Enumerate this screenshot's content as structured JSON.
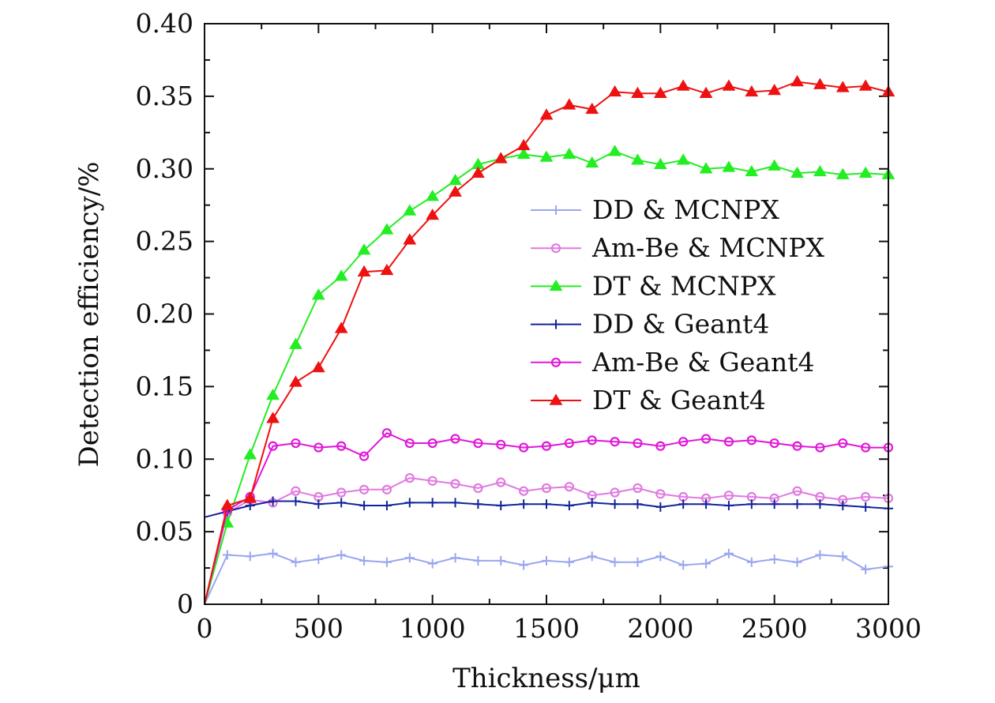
{
  "chart_data": {
    "type": "line",
    "title": "",
    "xlabel": "Thickness/μm",
    "ylabel": "Detection efficiency/%",
    "xlim": [
      0,
      3000
    ],
    "ylim": [
      0,
      0.4
    ],
    "x_ticks": [
      "0",
      "500",
      "1000",
      "1500",
      "2000",
      "2500",
      "3000"
    ],
    "x_tick_values": [
      0,
      500,
      1000,
      1500,
      2000,
      2500,
      3000
    ],
    "y_ticks": [
      "0",
      "0.05",
      "0.10",
      "0.15",
      "0.20",
      "0.25",
      "0.30",
      "0.35",
      "0.40"
    ],
    "y_tick_values": [
      0,
      0.05,
      0.1,
      0.15,
      0.2,
      0.25,
      0.3,
      0.35,
      0.4
    ],
    "grid": false,
    "legend_position": "right-center",
    "x": [
      0,
      100,
      200,
      300,
      400,
      500,
      600,
      700,
      800,
      900,
      1000,
      1100,
      1200,
      1300,
      1400,
      1500,
      1600,
      1700,
      1800,
      1900,
      2000,
      2100,
      2200,
      2300,
      2400,
      2500,
      2600,
      2700,
      2800,
      2900,
      3000
    ],
    "series": [
      {
        "name": "DD & MCNPX",
        "color": "#9aa6ee",
        "marker": "plus",
        "values": [
          0,
          0.034,
          0.033,
          0.035,
          0.029,
          0.031,
          0.034,
          0.03,
          0.029,
          0.032,
          0.028,
          0.032,
          0.03,
          0.03,
          0.027,
          0.03,
          0.029,
          0.033,
          0.029,
          0.029,
          0.033,
          0.027,
          0.028,
          0.035,
          0.029,
          0.031,
          0.029,
          0.034,
          0.033,
          0.024,
          0.026
        ]
      },
      {
        "name": "Am-Be & MCNPX",
        "color": "#e07ae0",
        "marker": "circle",
        "values": [
          0,
          0.063,
          0.072,
          0.07,
          0.078,
          0.074,
          0.077,
          0.079,
          0.079,
          0.087,
          0.085,
          0.083,
          0.08,
          0.084,
          0.078,
          0.08,
          0.081,
          0.075,
          0.077,
          0.08,
          0.076,
          0.074,
          0.073,
          0.075,
          0.074,
          0.073,
          0.078,
          0.074,
          0.072,
          0.074,
          0.073
        ]
      },
      {
        "name": "DT & MCNPX",
        "color": "#22ee22",
        "marker": "triangle",
        "values": [
          0,
          0.056,
          0.103,
          0.144,
          0.179,
          0.213,
          0.226,
          0.244,
          0.258,
          0.271,
          0.281,
          0.292,
          0.303,
          0.307,
          0.31,
          0.308,
          0.31,
          0.304,
          0.312,
          0.306,
          0.303,
          0.306,
          0.3,
          0.301,
          0.298,
          0.302,
          0.297,
          0.298,
          0.296,
          0.297,
          0.296
        ]
      },
      {
        "name": "DD & Geant4",
        "color": "#12249a",
        "marker": "plus",
        "values": [
          0.06,
          0.064,
          0.068,
          0.071,
          0.071,
          0.069,
          0.07,
          0.068,
          0.068,
          0.07,
          0.07,
          0.07,
          0.069,
          0.068,
          0.069,
          0.069,
          0.068,
          0.07,
          0.069,
          0.069,
          0.067,
          0.069,
          0.069,
          0.068,
          0.069,
          0.069,
          0.069,
          0.069,
          0.068,
          0.067,
          0.066
        ]
      },
      {
        "name": "Am-Be & Geant4",
        "color": "#e018d8",
        "marker": "circle",
        "values": [
          0,
          0.065,
          0.074,
          0.109,
          0.111,
          0.108,
          0.109,
          0.102,
          0.118,
          0.111,
          0.111,
          0.114,
          0.111,
          0.11,
          0.108,
          0.109,
          0.111,
          0.113,
          0.112,
          0.111,
          0.109,
          0.112,
          0.114,
          0.112,
          0.113,
          0.111,
          0.109,
          0.108,
          0.111,
          0.108,
          0.108
        ]
      },
      {
        "name": "DT & Geant4",
        "color": "#ee1111",
        "marker": "triangle",
        "values": [
          0,
          0.068,
          0.073,
          0.128,
          0.153,
          0.163,
          0.19,
          0.229,
          0.23,
          0.251,
          0.268,
          0.284,
          0.297,
          0.307,
          0.316,
          0.337,
          0.344,
          0.341,
          0.353,
          0.352,
          0.352,
          0.357,
          0.352,
          0.357,
          0.353,
          0.354,
          0.36,
          0.358,
          0.356,
          0.357,
          0.353
        ]
      }
    ]
  }
}
